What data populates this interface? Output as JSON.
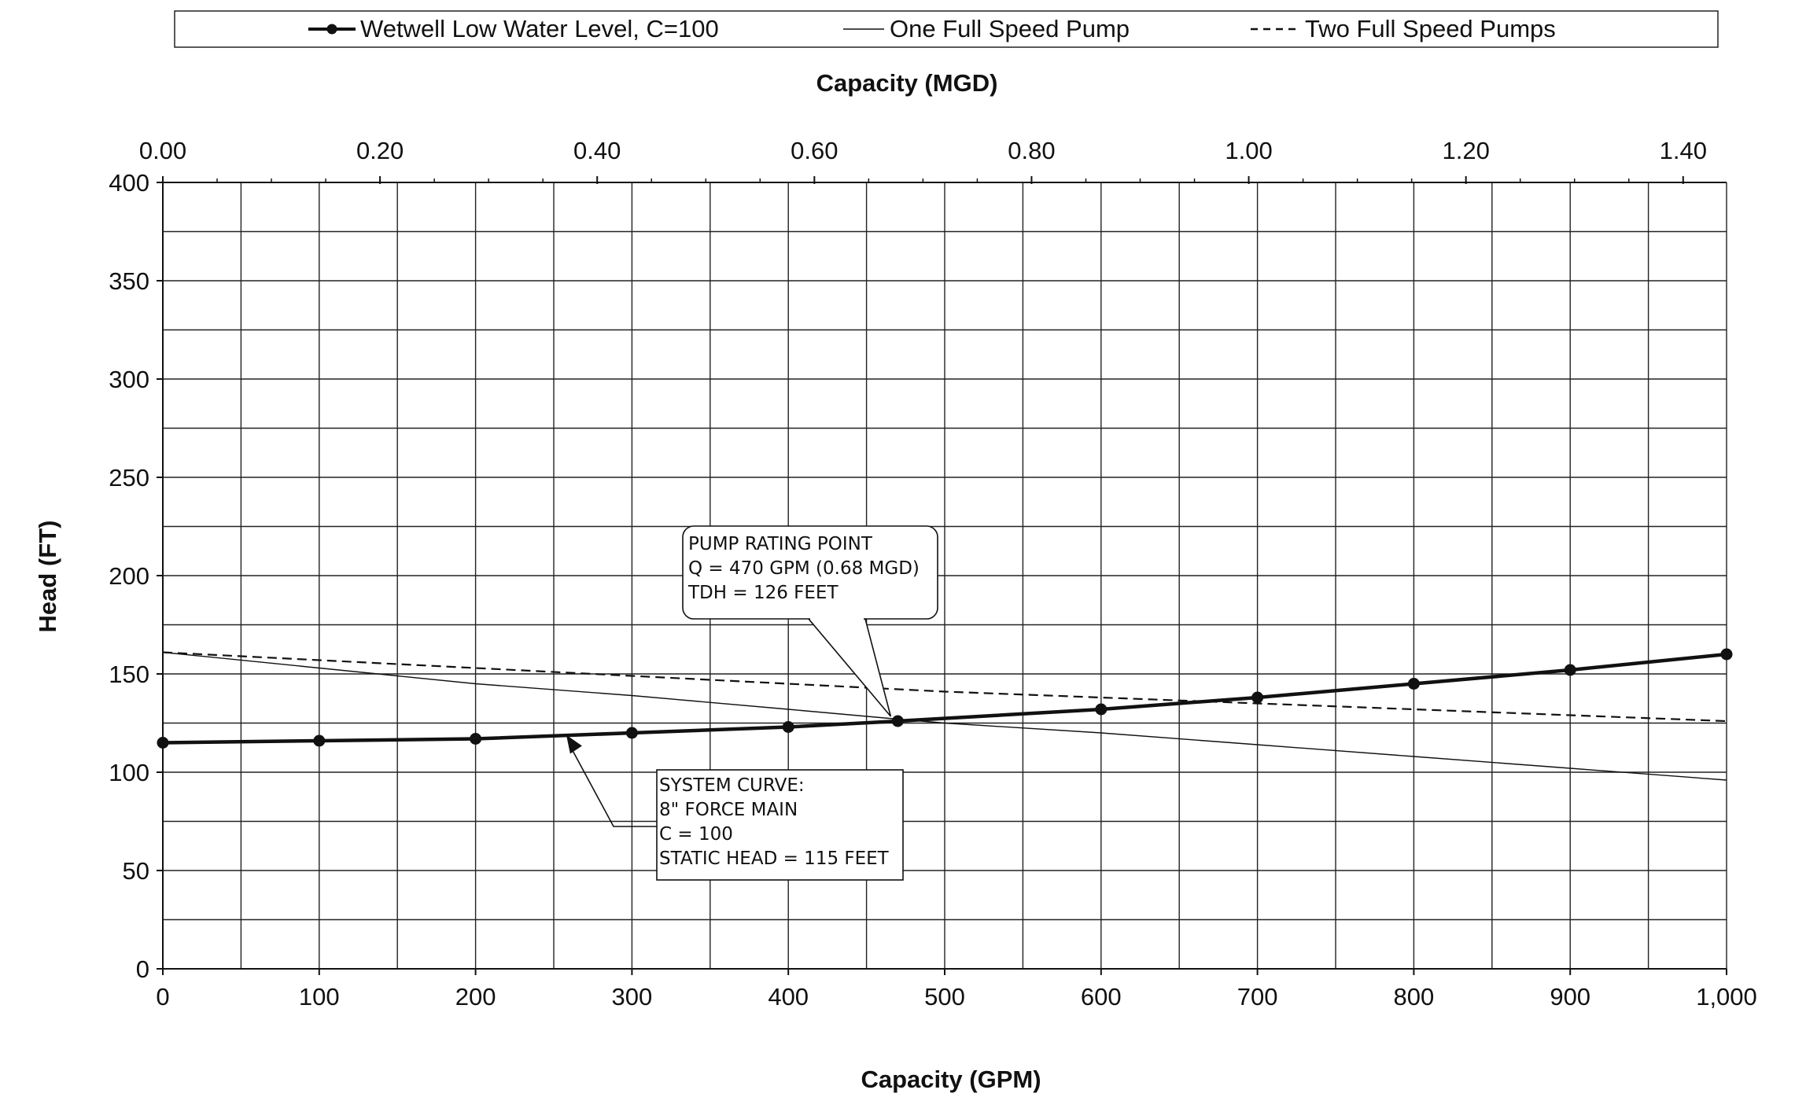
{
  "legend": {
    "entries": [
      {
        "label": "Wetwell Low Water Level, C=100",
        "style": "thick-marker"
      },
      {
        "label": "One Full Speed Pump",
        "style": "thin"
      },
      {
        "label": "Two Full Speed Pumps",
        "style": "dashed"
      }
    ]
  },
  "chart_data": {
    "type": "line",
    "title": "",
    "xlabel": "Capacity (GPM)",
    "x2label": "Capacity (MGD)",
    "ylabel": "Head (FT)",
    "xlim": [
      0,
      1000
    ],
    "ylim": [
      0,
      400
    ],
    "x2lim": [
      0,
      1.44
    ],
    "x_ticks": [
      0,
      100,
      200,
      300,
      400,
      500,
      600,
      700,
      800,
      900,
      1000
    ],
    "x_tick_labels": [
      "0",
      "100",
      "200",
      "300",
      "400",
      "500",
      "600",
      "700",
      "800",
      "900",
      "1,000"
    ],
    "x2_ticks": [
      0.0,
      0.2,
      0.4,
      0.6,
      0.8,
      1.0,
      1.2,
      1.4
    ],
    "x2_tick_labels": [
      "0.00",
      "0.20",
      "0.40",
      "0.60",
      "0.80",
      "1.00",
      "1.20",
      "1.40"
    ],
    "y_ticks": [
      0,
      50,
      100,
      150,
      200,
      250,
      300,
      350,
      400
    ],
    "y_tick_labels": [
      "0",
      "50",
      "100",
      "150",
      "200",
      "250",
      "300",
      "350",
      "400"
    ],
    "grid": true,
    "legend_position": "top",
    "colors": {
      "line": "#111111",
      "grid": "#222222"
    },
    "series": [
      {
        "name": "Wetwell Low Water Level, C=100",
        "style": "thick-marker",
        "x": [
          0,
          100,
          200,
          300,
          400,
          470,
          600,
          700,
          800,
          900,
          1000
        ],
        "y": [
          115,
          116,
          117,
          120,
          123,
          126,
          132,
          138,
          145,
          152,
          160
        ]
      },
      {
        "name": "One Full Speed Pump",
        "style": "thin",
        "x": [
          0,
          100,
          200,
          300,
          400,
          470,
          500,
          600,
          700,
          800,
          900,
          1000
        ],
        "y": [
          161,
          153,
          145,
          139,
          132,
          127,
          125,
          120,
          114,
          108,
          102,
          96
        ]
      },
      {
        "name": "Two Full Speed Pumps",
        "style": "dashed",
        "x": [
          0,
          100,
          200,
          300,
          400,
          500,
          600,
          700,
          800,
          900,
          1000
        ],
        "y": [
          161,
          157,
          153,
          149,
          145,
          141,
          138,
          135,
          132,
          129,
          126
        ]
      }
    ],
    "annotations": [
      {
        "id": "rating",
        "lines": [
          "PUMP RATING POINT",
          "Q = 470 GPM (0.68 MGD)",
          "TDH = 126 FEET"
        ],
        "target": {
          "x": 470,
          "y": 126
        }
      },
      {
        "id": "system",
        "lines": [
          "SYSTEM CURVE:",
          "8\" FORCE MAIN",
          "C = 100",
          "STATIC HEAD = 115 FEET"
        ],
        "target": {
          "x": 258,
          "y": 119
        }
      }
    ]
  }
}
